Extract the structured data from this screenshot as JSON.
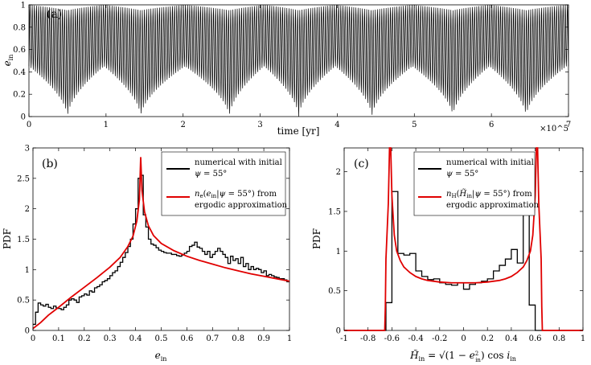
{
  "chart_data": [
    {
      "type": "line",
      "panel_label": "(a)",
      "xlabel": "time [yr]",
      "ylabel": "e_in",
      "x_multiplier": "×10^5",
      "xlim": [
        0,
        7
      ],
      "ylim": [
        0,
        1
      ],
      "xticks": [
        0,
        1,
        2,
        3,
        4,
        5,
        6,
        7
      ],
      "yticks": [
        0,
        0.2,
        0.4,
        0.6,
        0.8,
        1
      ],
      "grid": false,
      "fast_oscillation_count": 250,
      "envelope_minima_x": [
        0.5,
        1.45,
        2.6,
        3.5,
        4.45,
        5.5,
        6.45
      ],
      "series": [
        {
          "color": "#000000",
          "upper_envelope_range": [
            0.95,
            1.0
          ],
          "lower_envelope_range": [
            0.0,
            0.45
          ]
        }
      ]
    },
    {
      "type": "line",
      "panel_label": "(b)",
      "xlabel": "e_in",
      "ylabel": "PDF",
      "xlim": [
        0,
        1
      ],
      "ylim": [
        0,
        3
      ],
      "xticks": [
        0,
        0.1,
        0.2,
        0.3,
        0.4,
        0.5,
        0.6,
        0.7,
        0.8,
        0.9,
        1
      ],
      "yticks": [
        0,
        0.5,
        1,
        1.5,
        2,
        2.5,
        3
      ],
      "legend_position": "top-right",
      "series": [
        {
          "name": "numerical with initial ψ = 55°",
          "color": "#000000",
          "style": "histogram",
          "bin_width": 0.01,
          "values": [
            0.1,
            0.3,
            0.45,
            0.42,
            0.4,
            0.43,
            0.38,
            0.36,
            0.4,
            0.37,
            0.36,
            0.34,
            0.38,
            0.42,
            0.5,
            0.52,
            0.5,
            0.46,
            0.55,
            0.57,
            0.6,
            0.58,
            0.65,
            0.63,
            0.7,
            0.72,
            0.75,
            0.8,
            0.82,
            0.85,
            0.9,
            0.95,
            0.98,
            1.05,
            1.12,
            1.2,
            1.28,
            1.38,
            1.5,
            1.75,
            2.0,
            2.5,
            2.55,
            1.9,
            1.7,
            1.5,
            1.42,
            1.4,
            1.36,
            1.32,
            1.3,
            1.28,
            1.27,
            1.27,
            1.25,
            1.25,
            1.23,
            1.22,
            1.24,
            1.27,
            1.3,
            1.38,
            1.4,
            1.45,
            1.37,
            1.35,
            1.3,
            1.25,
            1.3,
            1.2,
            1.25,
            1.3,
            1.35,
            1.3,
            1.25,
            1.2,
            1.1,
            1.22,
            1.15,
            1.18,
            1.1,
            1.2,
            1.05,
            1.1,
            1.0,
            1.05,
            1.0,
            1.02,
            1.0,
            0.95,
            0.98,
            0.9,
            0.92,
            0.9,
            0.88,
            0.87,
            0.85,
            0.85,
            0.83,
            0.8
          ]
        },
        {
          "name": "n_e(e_in|ψ = 55°) from ergodic approximation",
          "color": "#e00000",
          "style": "line",
          "x": [
            0,
            0.03,
            0.06,
            0.1,
            0.15,
            0.2,
            0.25,
            0.3,
            0.34,
            0.37,
            0.39,
            0.405,
            0.415,
            0.42,
            0.425,
            0.435,
            0.45,
            0.47,
            0.5,
            0.55,
            0.6,
            0.65,
            0.7,
            0.75,
            0.8,
            0.85,
            0.9,
            0.95,
            1.0
          ],
          "y": [
            0.03,
            0.13,
            0.25,
            0.38,
            0.55,
            0.71,
            0.87,
            1.04,
            1.2,
            1.38,
            1.55,
            1.8,
            2.15,
            2.85,
            2.3,
            1.95,
            1.72,
            1.56,
            1.43,
            1.31,
            1.22,
            1.15,
            1.09,
            1.03,
            0.98,
            0.93,
            0.89,
            0.85,
            0.81
          ]
        }
      ]
    },
    {
      "type": "line",
      "panel_label": "(c)",
      "xlabel": "H̃_in = √(1 − e_in²) cos i_in",
      "ylabel": "PDF",
      "xlim": [
        -1,
        1
      ],
      "ylim": [
        0,
        2.3
      ],
      "xticks": [
        -1,
        -0.8,
        -0.6,
        -0.4,
        -0.2,
        0,
        0.2,
        0.4,
        0.6,
        0.8,
        1
      ],
      "yticks": [
        0,
        0.5,
        1,
        1.5,
        2
      ],
      "legend_position": "top-center",
      "series": [
        {
          "name": "numerical with initial ψ = 55°",
          "color": "#000000",
          "style": "histogram",
          "bin_width": 0.05,
          "values": [
            0,
            0,
            0,
            0,
            0,
            0,
            0,
            0.35,
            1.75,
            0.97,
            0.95,
            0.97,
            0.75,
            0.68,
            0.64,
            0.65,
            0.6,
            0.58,
            0.57,
            0.6,
            0.52,
            0.58,
            0.6,
            0.62,
            0.65,
            0.75,
            0.82,
            0.9,
            1.02,
            0.85,
            1.75,
            0.32,
            0,
            0,
            0,
            0,
            0,
            0,
            0,
            0
          ]
        },
        {
          "name": "n_H(H̃_in|ψ = 55°) from ergodic approximation",
          "color": "#e00000",
          "style": "line",
          "x": [
            -1,
            -0.66,
            -0.655,
            -0.65,
            -0.64,
            -0.63,
            -0.62,
            -0.61,
            -0.6,
            -0.58,
            -0.56,
            -0.53,
            -0.5,
            -0.45,
            -0.4,
            -0.35,
            -0.3,
            -0.2,
            -0.1,
            0,
            0.1,
            0.2,
            0.3,
            0.35,
            0.4,
            0.45,
            0.5,
            0.53,
            0.56,
            0.58,
            0.6,
            0.61,
            0.62,
            0.63,
            0.64,
            0.65,
            0.655,
            0.66,
            1
          ],
          "y": [
            0,
            0,
            0.3,
            0.9,
            1.25,
            1.6,
            2.3,
            2.3,
            1.7,
            1.2,
            1.0,
            0.88,
            0.8,
            0.73,
            0.68,
            0.65,
            0.63,
            0.61,
            0.6,
            0.6,
            0.6,
            0.61,
            0.63,
            0.65,
            0.68,
            0.73,
            0.8,
            0.88,
            1.0,
            1.2,
            1.7,
            2.3,
            2.3,
            1.6,
            1.25,
            0.9,
            0.3,
            0,
            0
          ]
        }
      ]
    }
  ]
}
